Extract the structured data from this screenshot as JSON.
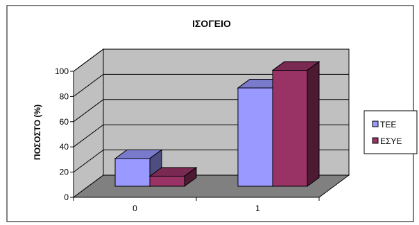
{
  "chart_data": {
    "type": "bar",
    "title": "ΙΣΟΓΕΙΟ",
    "ylabel": "ΠΟΣΟΣΤΟ (%)",
    "xlabel": "",
    "categories": [
      "0",
      "1"
    ],
    "series": [
      {
        "name": "TEE",
        "values": [
          22,
          78
        ],
        "color": "#9999ff"
      },
      {
        "name": "ΕΣΥΕ",
        "values": [
          8,
          92
        ],
        "color": "#993366"
      }
    ],
    "ylim": [
      0,
      100
    ],
    "yticks": [
      "0",
      "20",
      "40",
      "60",
      "80",
      "100"
    ],
    "grid": true,
    "wall_color": "#c0c0c0",
    "floor_color": "#808080",
    "legend_position": "right"
  }
}
